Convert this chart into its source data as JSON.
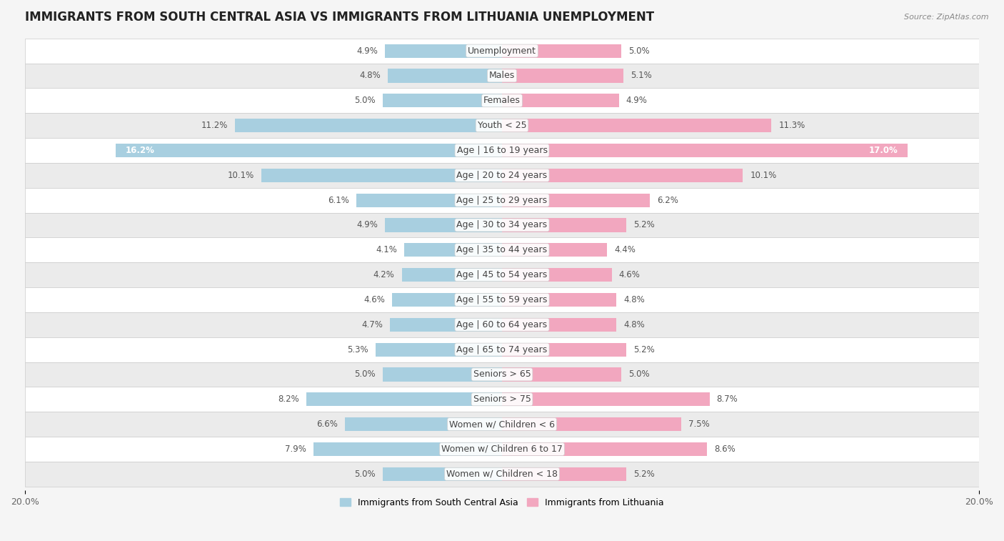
{
  "title": "IMMIGRANTS FROM SOUTH CENTRAL ASIA VS IMMIGRANTS FROM LITHUANIA UNEMPLOYMENT",
  "source": "Source: ZipAtlas.com",
  "categories": [
    "Unemployment",
    "Males",
    "Females",
    "Youth < 25",
    "Age | 16 to 19 years",
    "Age | 20 to 24 years",
    "Age | 25 to 29 years",
    "Age | 30 to 34 years",
    "Age | 35 to 44 years",
    "Age | 45 to 54 years",
    "Age | 55 to 59 years",
    "Age | 60 to 64 years",
    "Age | 65 to 74 years",
    "Seniors > 65",
    "Seniors > 75",
    "Women w/ Children < 6",
    "Women w/ Children 6 to 17",
    "Women w/ Children < 18"
  ],
  "left_values": [
    4.9,
    4.8,
    5.0,
    11.2,
    16.2,
    10.1,
    6.1,
    4.9,
    4.1,
    4.2,
    4.6,
    4.7,
    5.3,
    5.0,
    8.2,
    6.6,
    7.9,
    5.0
  ],
  "right_values": [
    5.0,
    5.1,
    4.9,
    11.3,
    17.0,
    10.1,
    6.2,
    5.2,
    4.4,
    4.6,
    4.8,
    4.8,
    5.2,
    5.0,
    8.7,
    7.5,
    8.6,
    5.2
  ],
  "left_color": "#a8cfe0",
  "right_color": "#f2a7bf",
  "left_label": "Immigrants from South Central Asia",
  "right_label": "Immigrants from Lithuania",
  "axis_limit": 20.0,
  "background_color": "#f5f5f5",
  "row_color_even": "#ffffff",
  "row_color_odd": "#ebebeb",
  "title_fontsize": 12,
  "label_fontsize": 9,
  "value_fontsize": 8.5,
  "legend_fontsize": 9,
  "axis_label_fontsize": 9
}
